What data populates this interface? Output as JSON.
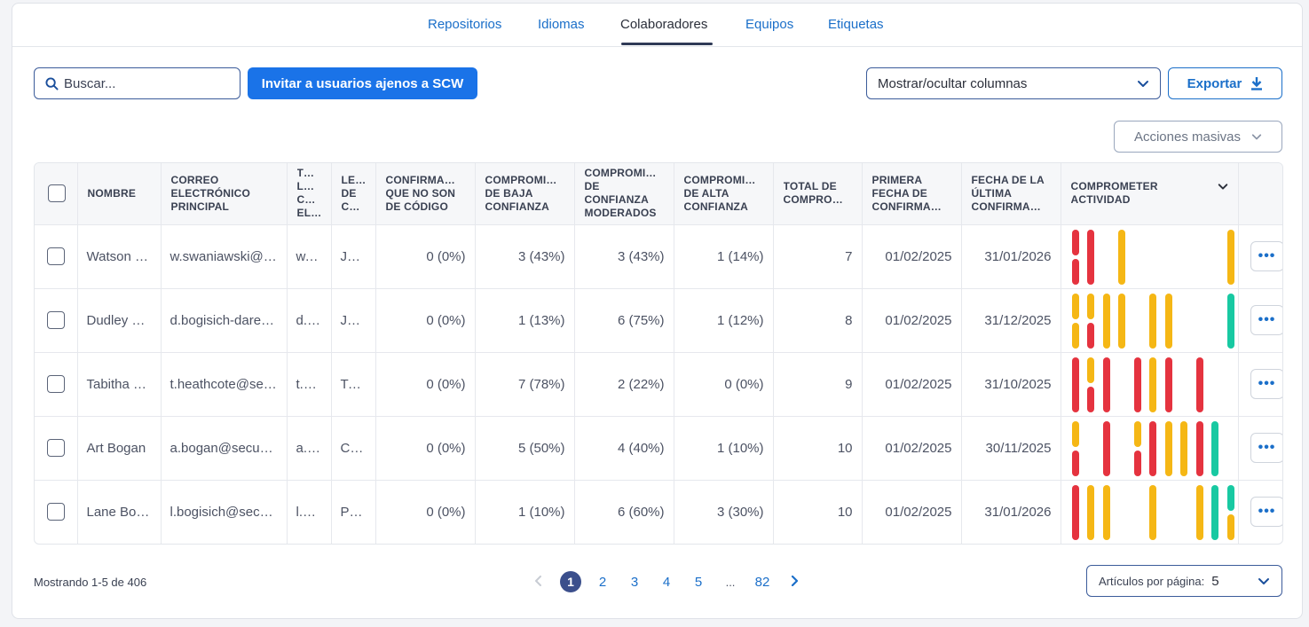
{
  "tabs": [
    {
      "label": "Repositorios",
      "active": false
    },
    {
      "label": "Idiomas",
      "active": false
    },
    {
      "label": "Colaboradores",
      "active": true
    },
    {
      "label": "Equipos",
      "active": false
    },
    {
      "label": "Etiquetas",
      "active": false
    }
  ],
  "toolbar": {
    "search_placeholder": "Buscar...",
    "invite_label": "Invitar a usuarios ajenos a SCW",
    "columns_label": "Mostrar/ocultar columnas",
    "export_label": "Exportar",
    "bulk_label": "Acciones masivas"
  },
  "table": {
    "headers": [
      "Nombre",
      "Correo electrónico principal",
      "T… L… C… EL…",
      "LE… DE C…",
      "Confirma… que no son de código",
      "Compromi… de baja confianza",
      "Compromi… de confianza moderados",
      "Compromi… de alta confianza",
      "Total de compro…",
      "Primera fecha de confirma…",
      "Fecha de la última confirma…",
      "Comprometer actividad"
    ],
    "rows": [
      {
        "name": "Watson S…",
        "email": "w.swaniawski@s…",
        "col3": "w.s…",
        "col4": "Jav…",
        "non_code": "0 (0%)",
        "low": "3 (43%)",
        "moderate": "3 (43%)",
        "high": "1 (14%)",
        "total": "7",
        "first": "01/02/2025",
        "last": "31/01/2026"
      },
      {
        "name": "Dudley B…",
        "email": "d.bogisich-dare…",
        "col3": "d.b…",
        "col4": "Jav…",
        "non_code": "0 (0%)",
        "low": "1 (13%)",
        "moderate": "6 (75%)",
        "high": "1 (12%)",
        "total": "8",
        "first": "01/02/2025",
        "last": "31/12/2025"
      },
      {
        "name": "Tabitha H…",
        "email": "t.heathcote@sec…",
        "col3": "t.h…",
        "col4": "Ty…",
        "non_code": "0 (0%)",
        "low": "7 (78%)",
        "moderate": "2 (22%)",
        "high": "0 (0%)",
        "total": "9",
        "first": "01/02/2025",
        "last": "31/10/2025"
      },
      {
        "name": "Art Bogan",
        "email": "a.bogan@secure…",
        "col3": "a.b…",
        "col4": "C+…",
        "non_code": "0 (0%)",
        "low": "5 (50%)",
        "moderate": "4 (40%)",
        "high": "1 (10%)",
        "total": "10",
        "first": "01/02/2025",
        "last": "30/11/2025"
      },
      {
        "name": "Lane Bog…",
        "email": "l.bogisich@secur…",
        "col3": "l.b…",
        "col4": "PH…",
        "non_code": "0 (0%)",
        "low": "1 (10%)",
        "moderate": "6 (60%)",
        "high": "3 (30%)",
        "total": "10",
        "first": "01/02/2025",
        "last": "31/01/2026"
      }
    ]
  },
  "activity_colors": {
    "red": "#e5333f",
    "yellow": "#f5b715",
    "green": "#18c9a2"
  },
  "activity": [
    [
      [
        1,
        "r",
        "r"
      ],
      [
        2,
        "r",
        "-"
      ],
      [
        4,
        "y",
        "-"
      ],
      [
        11,
        "y",
        "-"
      ]
    ],
    [
      [
        1,
        "y",
        "y"
      ],
      [
        2,
        "y",
        "r"
      ],
      [
        3,
        "y",
        "-"
      ],
      [
        4,
        "y",
        "-"
      ],
      [
        6,
        "y",
        "-"
      ],
      [
        7,
        "y",
        "-"
      ],
      [
        11,
        "g",
        "-"
      ]
    ],
    [
      [
        1,
        "r",
        "-"
      ],
      [
        2,
        "y",
        "r"
      ],
      [
        3,
        "r",
        "-"
      ],
      [
        5,
        "r",
        "-"
      ],
      [
        6,
        "y",
        "-"
      ],
      [
        7,
        "r",
        "-"
      ],
      [
        9,
        "r",
        "-"
      ]
    ],
    [
      [
        1,
        "y",
        "r"
      ],
      [
        3,
        "r",
        "-"
      ],
      [
        5,
        "y",
        "r"
      ],
      [
        6,
        "r",
        "-"
      ],
      [
        7,
        "y",
        "-"
      ],
      [
        8,
        "y",
        "-"
      ],
      [
        9,
        "r",
        "-"
      ],
      [
        10,
        "g",
        "-"
      ]
    ],
    [
      [
        1,
        "r",
        "-"
      ],
      [
        2,
        "y",
        "-"
      ],
      [
        3,
        "y",
        "-"
      ],
      [
        6,
        "y",
        "-"
      ],
      [
        9,
        "y",
        "-"
      ],
      [
        10,
        "g",
        "-"
      ],
      [
        11,
        "g",
        "y"
      ]
    ]
  ],
  "footer": {
    "showing": "Mostrando 1-5 de 406",
    "pages": [
      "1",
      "2",
      "3",
      "4",
      "5",
      "...",
      "82"
    ],
    "current_page": "1",
    "per_page_label": "Artículos por página:",
    "per_page_value": "5"
  },
  "icons": {
    "search": "search-icon",
    "export": "download-icon",
    "dropdown": "chevron-down-icon",
    "more": "more-horizontal-icon",
    "prev": "chevron-left-icon",
    "next": "chevron-right-icon"
  }
}
